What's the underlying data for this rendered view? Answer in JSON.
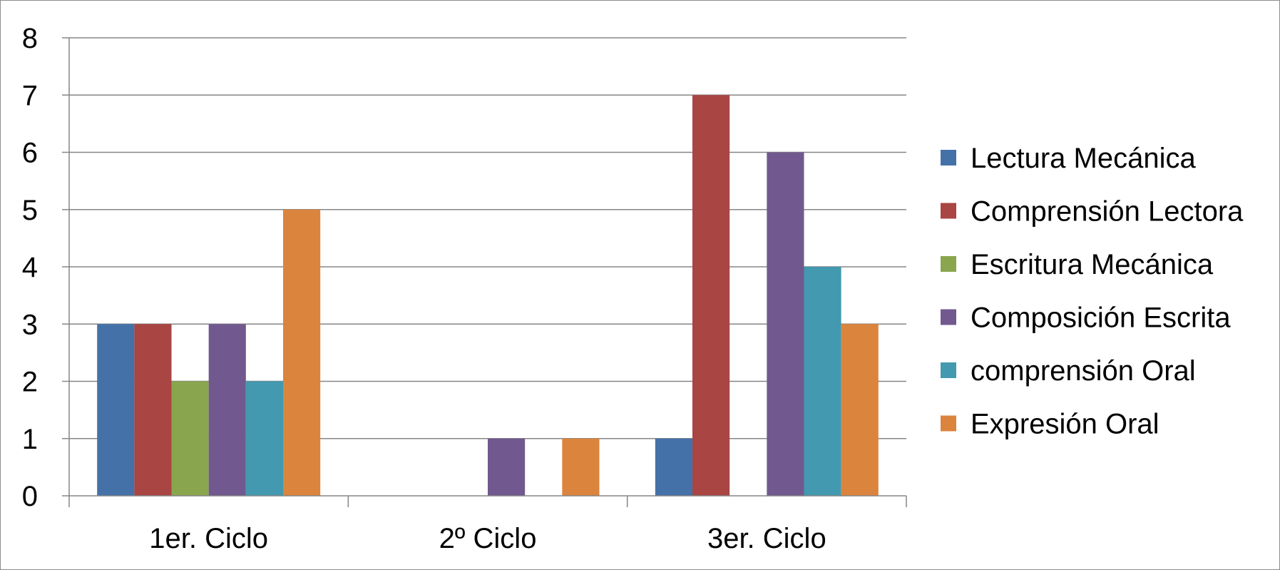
{
  "chart_data": {
    "type": "bar",
    "title": "",
    "xlabel": "",
    "ylabel": "",
    "categories": [
      "1er. Ciclo",
      "2º Ciclo",
      "3er. Ciclo"
    ],
    "ylim": [
      0,
      8
    ],
    "yticks": [
      "0",
      "1",
      "2",
      "3",
      "4",
      "5",
      "6",
      "7",
      "8"
    ],
    "grid": true,
    "legend_position": "right",
    "series": [
      {
        "name": "Lectura Mecánica",
        "color": "#4472a8",
        "values": [
          3,
          0,
          1
        ]
      },
      {
        "name": "Comprensión Lectora",
        "color": "#a94543",
        "values": [
          3,
          0,
          7
        ]
      },
      {
        "name": "Escritura Mecánica",
        "color": "#89a64e",
        "values": [
          2,
          0,
          0
        ]
      },
      {
        "name": "Composición Escrita",
        "color": "#71598f",
        "values": [
          3,
          1,
          6
        ]
      },
      {
        "name": "comprensión Oral",
        "color": "#4299b0",
        "values": [
          2,
          0,
          4
        ]
      },
      {
        "name": "Expresión Oral",
        "color": "#db843d",
        "values": [
          5,
          1,
          3
        ]
      }
    ]
  }
}
